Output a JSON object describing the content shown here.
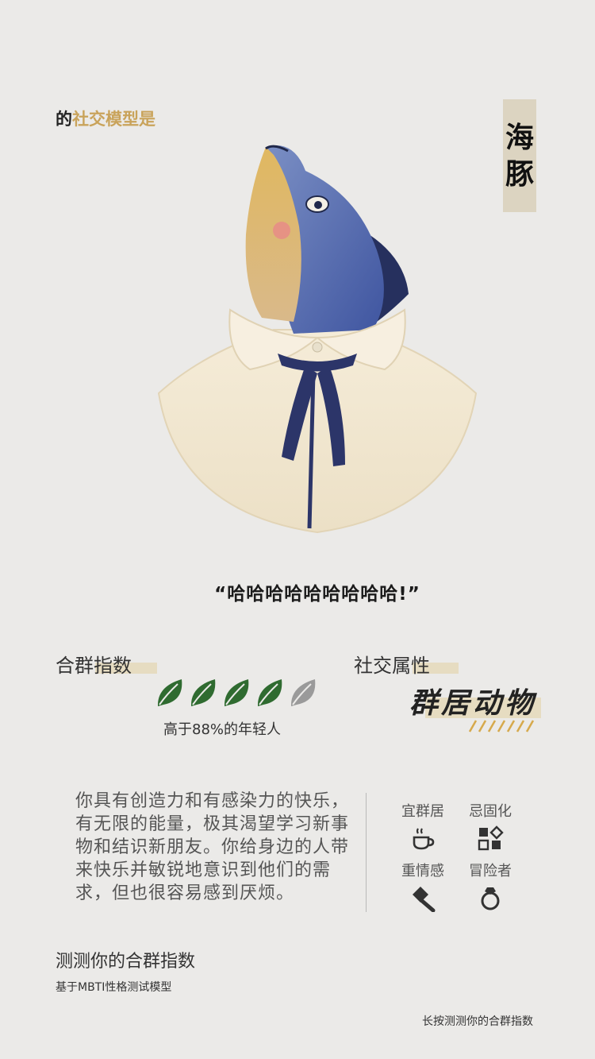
{
  "header": {
    "prefix": "的",
    "label": "社交模型是",
    "animal_chars": [
      "海",
      "豚"
    ]
  },
  "quote": "“哈哈哈哈哈哈哈哈哈!”",
  "score": {
    "title": "合群指数",
    "rating": 4,
    "max": 5,
    "caption": "高于88%的年轻人"
  },
  "attribute": {
    "title": "社交属性",
    "value": "群居动物"
  },
  "description": "你具有创造力和有感染力的快乐，有无限的能量，极其渴望学习新事物和结识新朋友。你给身边的人带来快乐并敏锐地意识到他们的需求，但也很容易感到厌烦。",
  "traits": [
    {
      "label": "宜群居",
      "icon": "coffee-cup-icon"
    },
    {
      "label": "忌固化",
      "icon": "squares-diamond-icon"
    },
    {
      "label": "重情感",
      "icon": "hammer-icon"
    },
    {
      "label": "冒险者",
      "icon": "ring-icon"
    }
  ],
  "footer": {
    "title": "测测你的合群指数",
    "subtitle": "基于MBTI性格测试模型",
    "press_hint": "长按测测你的合群指数"
  },
  "colors": {
    "background": "#ebeae8",
    "accent": "#c9a35a",
    "highlight": "#e6dcc1",
    "leaf_filled": "#2f6b30",
    "leaf_empty": "#9a9a9a"
  }
}
